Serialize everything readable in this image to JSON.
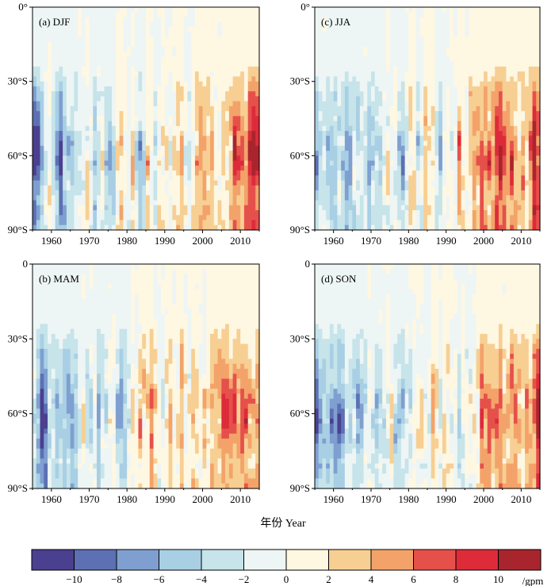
{
  "chart_data": {
    "type": "heatmap",
    "xlabel": "年份 Year",
    "xticks": [
      1960,
      1970,
      1980,
      1990,
      2000,
      2010
    ],
    "xlim": [
      1955,
      2015
    ],
    "ylim": [
      0,
      90
    ],
    "colorbar": {
      "unit": "/gpm",
      "bounds": [
        -12,
        -10,
        -8,
        -6,
        -4,
        -2,
        0,
        2,
        4,
        6,
        8,
        10,
        12
      ],
      "tick_labels": [
        "−10",
        "−8",
        "−6",
        "−4",
        "−2",
        "0",
        "2",
        "4",
        "6",
        "8",
        "10"
      ],
      "colors": [
        "#4b3f8f",
        "#5c70b3",
        "#7f9fd0",
        "#a8cfe4",
        "#c6e4ea",
        "#eef5f5",
        "#fef7e2",
        "#f7cf93",
        "#f3a36a",
        "#e6504b",
        "#dd2b3a",
        "#a9252d"
      ]
    },
    "panels": [
      {
        "label": "(a) DJF",
        "yticks": [
          "0°",
          "30°S",
          "60°S",
          "90°S"
        ],
        "season": 0
      },
      {
        "label": "(c) JJA",
        "yticks": [
          "0°",
          "30°S",
          "60°S",
          "90°S"
        ],
        "season": 1
      },
      {
        "label": "(b) MAM",
        "yticks": [
          "0",
          "30°S",
          "60°S",
          "90°S"
        ],
        "season": 2
      },
      {
        "label": "(d) SON",
        "yticks": [
          "0",
          "30°S",
          "60°S",
          "90°S"
        ],
        "season": 3
      }
    ],
    "pattern_note_levels": {
      "DJF": [
        [
          1960,
          -8
        ],
        [
          1965,
          4
        ],
        [
          1970,
          -8
        ],
        [
          1980,
          -8
        ],
        [
          1985,
          -6
        ],
        [
          2000,
          8
        ],
        [
          2008,
          10
        ],
        [
          2013,
          8
        ]
      ],
      "JJA": [
        [
          1960,
          -10
        ],
        [
          1965,
          -10
        ],
        [
          1975,
          -4
        ],
        [
          1985,
          -4
        ],
        [
          1995,
          4
        ],
        [
          2005,
          10
        ],
        [
          2010,
          10
        ]
      ],
      "MAM": [
        [
          1957,
          -8
        ],
        [
          1965,
          -6
        ],
        [
          1980,
          -6
        ],
        [
          1997,
          4
        ],
        [
          2002,
          10
        ],
        [
          2008,
          10
        ],
        [
          2013,
          8
        ]
      ],
      "SON": [
        [
          1956,
          -8
        ],
        [
          1965,
          -6
        ],
        [
          1980,
          -6
        ],
        [
          1990,
          4
        ],
        [
          2000,
          8
        ],
        [
          2008,
          10
        ],
        [
          2012,
          10
        ]
      ]
    }
  }
}
